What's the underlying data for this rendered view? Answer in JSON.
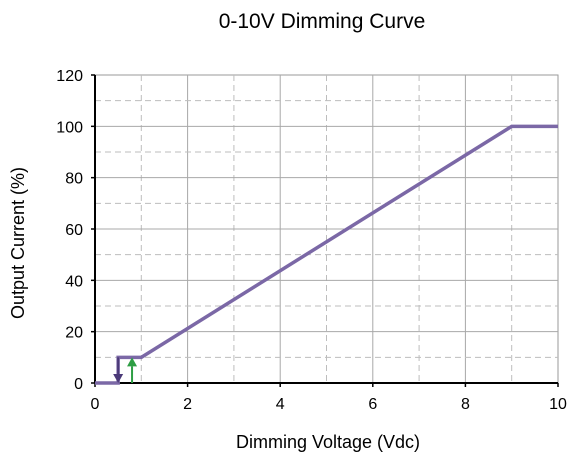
{
  "chart_data": {
    "type": "line",
    "title": "0-10V Dimming Curve",
    "xlabel": "Dimming Voltage (Vdc)",
    "ylabel": "Output Current (%)",
    "xlim": [
      0,
      10
    ],
    "ylim": [
      0,
      120
    ],
    "x_ticks": [
      "0",
      "2",
      "4",
      "6",
      "8",
      "10"
    ],
    "y_ticks": [
      "0",
      "20",
      "40",
      "60",
      "80",
      "100",
      "120"
    ],
    "grid": true,
    "legend": "none",
    "series": [
      {
        "color": "#7B68A6",
        "x": [
          0,
          0.5,
          0.5,
          1,
          9,
          10
        ],
        "y": [
          0,
          0,
          10,
          10,
          100,
          100
        ]
      }
    ],
    "annotations": [
      {
        "type": "arrow",
        "direction": "down",
        "x": 0.5,
        "y_from": 10,
        "y_to": 0,
        "color": "#4B3A78"
      },
      {
        "type": "arrow",
        "direction": "up",
        "x": 0.8,
        "y_from": 0,
        "y_to": 10,
        "color": "#2E9E44"
      }
    ]
  }
}
